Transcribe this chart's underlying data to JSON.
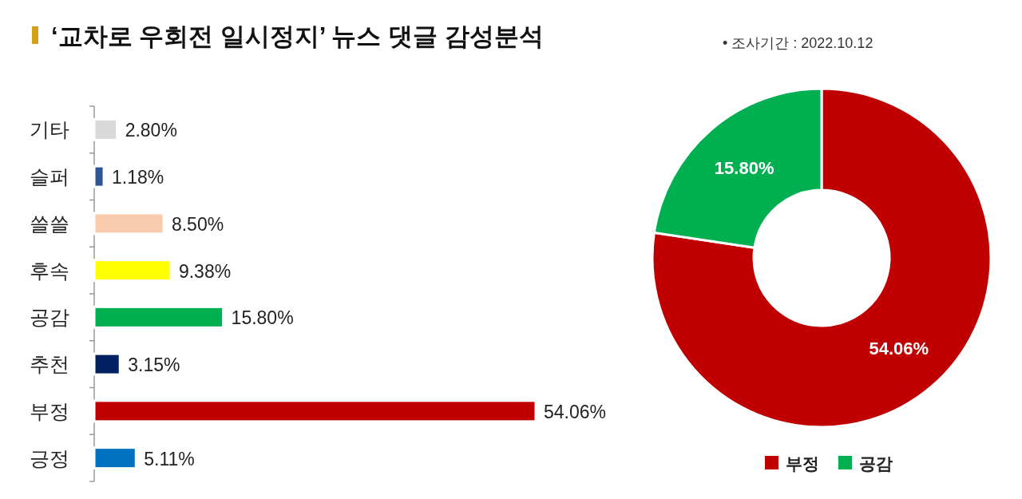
{
  "chart_data": [
    {
      "type": "bar",
      "title": "‘교차로 우회전 일시정지’ 뉴스 댓글 감성분석",
      "orientation": "horizontal",
      "categories": [
        "기타",
        "슬퍼",
        "쓸쓸",
        "후속",
        "공감",
        "추천",
        "부정",
        "긍정"
      ],
      "values": [
        2.8,
        1.18,
        8.5,
        9.38,
        15.8,
        3.15,
        54.06,
        5.11
      ],
      "colors": [
        "#d9d9d9",
        "#2f5597",
        "#f8cbad",
        "#ffff00",
        "#00b050",
        "#002060",
        "#c00000",
        "#0070c0"
      ],
      "value_labels": [
        "2.80%",
        "1.18%",
        "8.50%",
        "9.38%",
        "15.80%",
        "3.15%",
        "54.06%",
        "5.11%"
      ]
    },
    {
      "type": "donut",
      "subtitle": "• 조사기간 : 2022.10.12",
      "categories": [
        "부정",
        "공감"
      ],
      "values": [
        54.06,
        15.8
      ],
      "colors": [
        "#c00000",
        "#00b050"
      ],
      "value_labels": [
        "54.06%",
        "15.80%"
      ],
      "legend": "bottom"
    }
  ]
}
